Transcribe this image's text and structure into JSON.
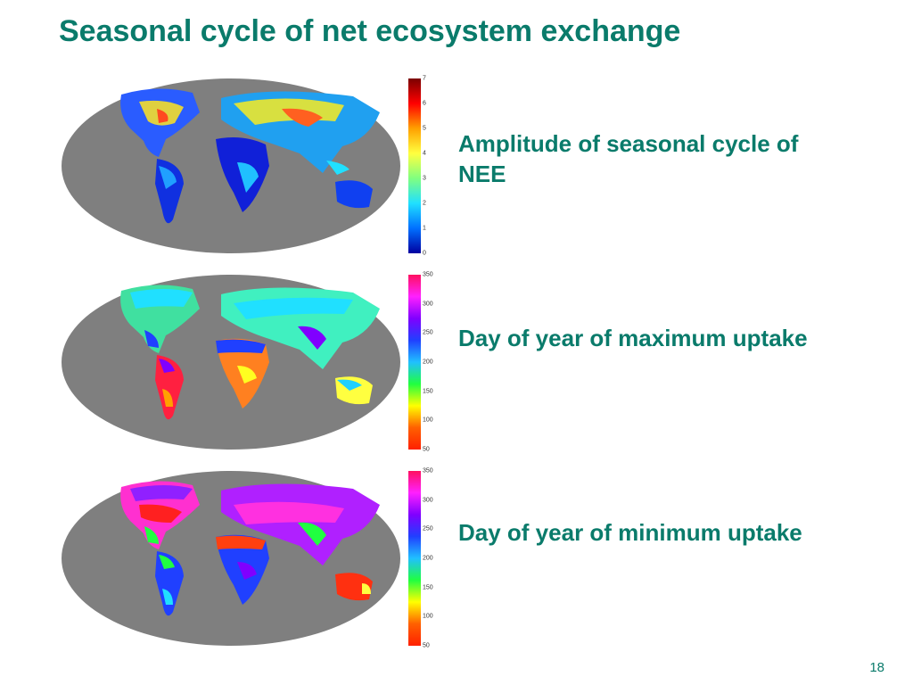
{
  "slide": {
    "title": "Seasonal cycle of net ecosystem exchange",
    "page_number": "18"
  },
  "panels": [
    {
      "label": "Amplitude of seasonal cycle of NEE",
      "colorbar": {
        "ticks": [
          "7",
          "6",
          "5",
          "4",
          "3",
          "2",
          "1",
          "0"
        ],
        "colors": [
          "#7a0000",
          "#ff0000",
          "#ffa000",
          "#ffff40",
          "#80ff80",
          "#20e0ff",
          "#0070ff",
          "#0000a0"
        ]
      },
      "theme": "amplitude"
    },
    {
      "label": "Day of year of maximum uptake",
      "colorbar": {
        "ticks": [
          "350",
          "300",
          "250",
          "200",
          "150",
          "100",
          "50"
        ],
        "colors": [
          "#ff1060",
          "#ff20ff",
          "#8000ff",
          "#2040ff",
          "#20c0ff",
          "#20ff40",
          "#ffff00",
          "#ff6000",
          "#ff2000"
        ]
      },
      "theme": "max"
    },
    {
      "label": "Day of year of minimum uptake",
      "colorbar": {
        "ticks": [
          "350",
          "300",
          "250",
          "200",
          "150",
          "100",
          "50"
        ],
        "colors": [
          "#ff1060",
          "#ff20ff",
          "#8000ff",
          "#2040ff",
          "#20c0ff",
          "#20ff40",
          "#ffff00",
          "#ff6000",
          "#ff2000"
        ]
      },
      "theme": "min"
    }
  ]
}
